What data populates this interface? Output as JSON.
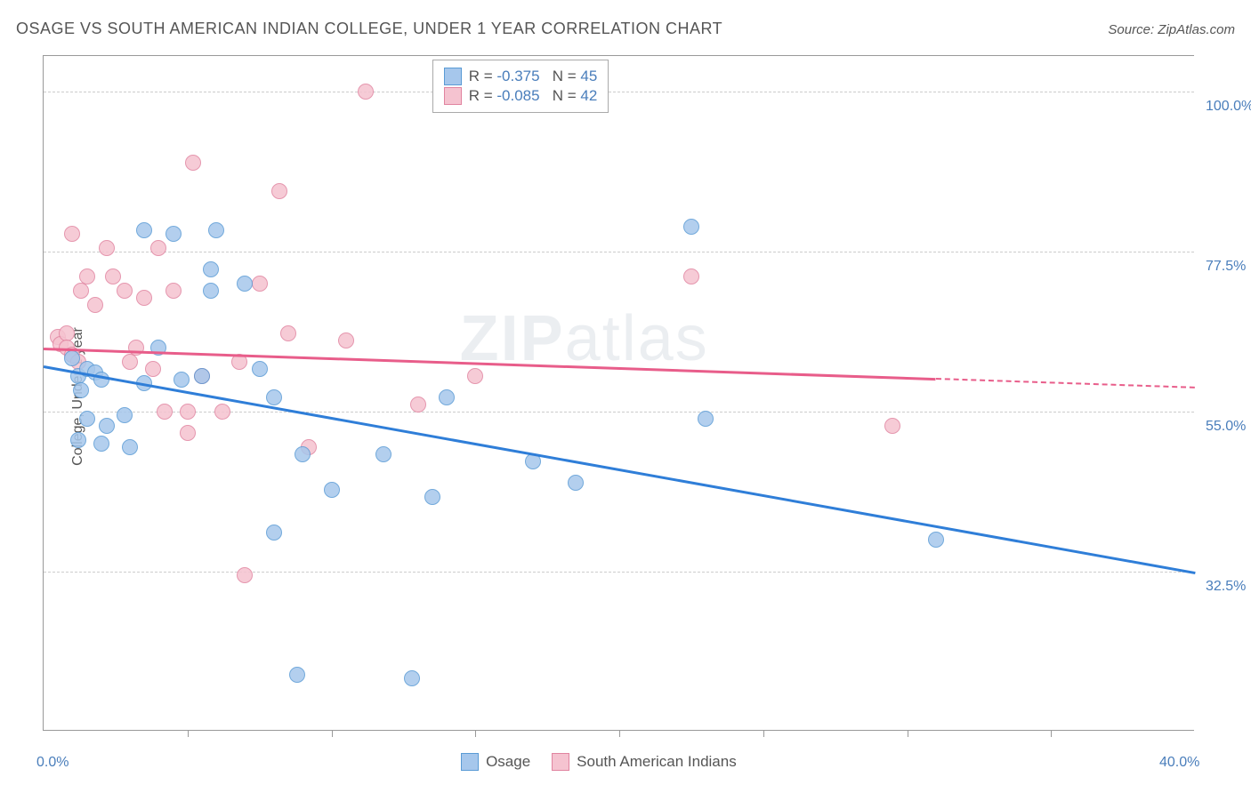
{
  "header": {
    "title": "OSAGE VS SOUTH AMERICAN INDIAN COLLEGE, UNDER 1 YEAR CORRELATION CHART",
    "source_prefix": "Source: ",
    "source_name": "ZipAtlas.com"
  },
  "ylabel": "College, Under 1 year",
  "watermark": {
    "part1": "ZIP",
    "part2": "atlas"
  },
  "axes": {
    "xlim": [
      0,
      40
    ],
    "ylim": [
      10,
      105
    ],
    "x_ticks": [
      5,
      10,
      15,
      20,
      25,
      30,
      35
    ],
    "x_labels": [
      {
        "value": 0,
        "text": "0.0%"
      },
      {
        "value": 40,
        "text": "40.0%"
      }
    ],
    "y_gridlines": [
      32.5,
      55.0,
      77.5,
      100.0
    ],
    "y_labels": [
      {
        "value": 32.5,
        "text": "32.5%"
      },
      {
        "value": 55.0,
        "text": "55.0%"
      },
      {
        "value": 77.5,
        "text": "77.5%"
      },
      {
        "value": 100.0,
        "text": "100.0%"
      }
    ]
  },
  "colors": {
    "blue_fill": "#a6c7ec",
    "blue_stroke": "#5a9bd5",
    "blue_line": "#2f7ed8",
    "pink_fill": "#f5c3d0",
    "pink_stroke": "#e184a0",
    "pink_line": "#e85d8a",
    "grid": "#cccccc",
    "axis": "#999999",
    "text": "#555555",
    "value_text": "#4a7ebb"
  },
  "marker": {
    "radius": 9,
    "stroke_width": 1,
    "opacity": 0.85
  },
  "stats_legend": {
    "r_label": "R =",
    "n_label": "N =",
    "series": [
      {
        "r": "-0.375",
        "n": "45",
        "swatch": "blue"
      },
      {
        "r": "-0.085",
        "n": "42",
        "swatch": "pink"
      }
    ]
  },
  "bottom_legend": {
    "items": [
      {
        "label": "Osage",
        "swatch": "blue"
      },
      {
        "label": "South American Indians",
        "swatch": "pink"
      }
    ]
  },
  "series": {
    "osage": {
      "color_key": "blue",
      "trend": {
        "x1": 0,
        "y1": 61.5,
        "x2": 40,
        "y2": 32.5,
        "solid_until_x": 40
      },
      "points": [
        [
          1.0,
          62.5
        ],
        [
          1.2,
          60
        ],
        [
          1.3,
          58
        ],
        [
          1.5,
          61
        ],
        [
          1.8,
          60.5
        ],
        [
          2.0,
          59.5
        ],
        [
          1.5,
          54
        ],
        [
          2.2,
          53
        ],
        [
          2.8,
          54.5
        ],
        [
          2.0,
          50.5
        ],
        [
          1.2,
          51
        ],
        [
          3.0,
          50
        ],
        [
          3.5,
          80.5
        ],
        [
          3.5,
          59
        ],
        [
          4.0,
          64
        ],
        [
          4.5,
          80
        ],
        [
          4.8,
          59.5
        ],
        [
          5.8,
          75
        ],
        [
          5.8,
          72
        ],
        [
          5.5,
          60
        ],
        [
          6.0,
          80.5
        ],
        [
          7.0,
          73
        ],
        [
          7.5,
          61
        ],
        [
          8.0,
          57
        ],
        [
          8.0,
          38
        ],
        [
          8.8,
          18
        ],
        [
          9.0,
          49
        ],
        [
          10.0,
          44
        ],
        [
          11.8,
          49
        ],
        [
          12.8,
          17.5
        ],
        [
          13.5,
          43
        ],
        [
          14.0,
          57
        ],
        [
          17.0,
          48
        ],
        [
          18.5,
          45
        ],
        [
          22.5,
          81
        ],
        [
          23.0,
          54
        ],
        [
          31.0,
          37
        ]
      ]
    },
    "sai": {
      "color_key": "pink",
      "trend": {
        "x1": 0,
        "y1": 64,
        "x2": 40,
        "y2": 58.5,
        "solid_until_x": 31
      },
      "points": [
        [
          0.5,
          65.5
        ],
        [
          0.6,
          64.5
        ],
        [
          0.8,
          66
        ],
        [
          0.8,
          64
        ],
        [
          1.0,
          63
        ],
        [
          1.2,
          62
        ],
        [
          1.0,
          80
        ],
        [
          1.3,
          72
        ],
        [
          1.5,
          74
        ],
        [
          1.8,
          70
        ],
        [
          2.2,
          78
        ],
        [
          2.4,
          74
        ],
        [
          2.8,
          72
        ],
        [
          3.0,
          62
        ],
        [
          3.2,
          64
        ],
        [
          3.5,
          71
        ],
        [
          3.8,
          61
        ],
        [
          4.0,
          78
        ],
        [
          4.2,
          55
        ],
        [
          4.5,
          72
        ],
        [
          5.0,
          55
        ],
        [
          5.0,
          52
        ],
        [
          5.2,
          90
        ],
        [
          5.5,
          60
        ],
        [
          6.2,
          55
        ],
        [
          6.8,
          62
        ],
        [
          7.0,
          32
        ],
        [
          7.5,
          73
        ],
        [
          8.2,
          86
        ],
        [
          8.5,
          66
        ],
        [
          9.2,
          50
        ],
        [
          10.5,
          65
        ],
        [
          11.2,
          100
        ],
        [
          13.0,
          56
        ],
        [
          15.0,
          60
        ],
        [
          22.5,
          74
        ],
        [
          29.5,
          53
        ]
      ]
    }
  }
}
